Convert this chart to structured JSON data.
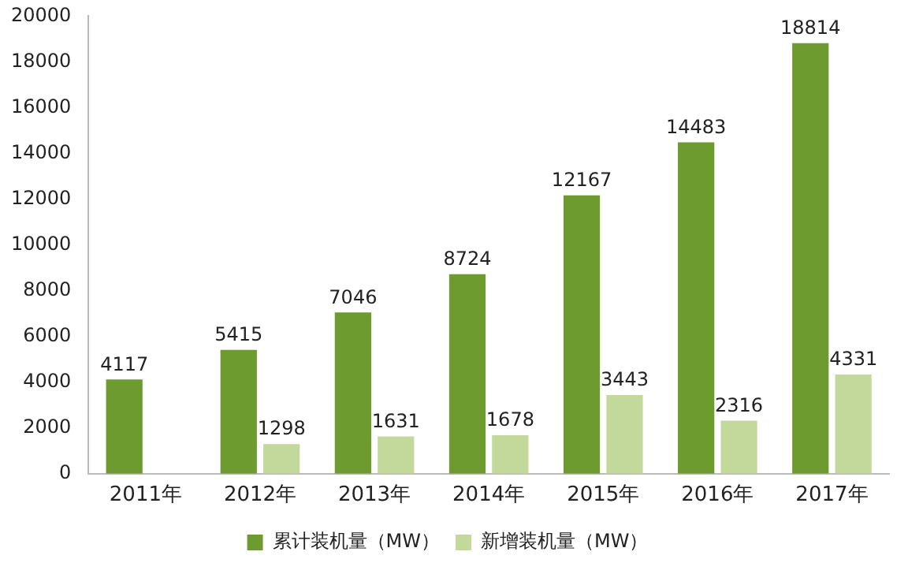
{
  "chart_data": {
    "type": "bar",
    "categories": [
      "2011年",
      "2012年",
      "2013年",
      "2014年",
      "2015年",
      "2016年",
      "2017年"
    ],
    "series": [
      {
        "name": "累计装机量（MW）",
        "color": "#6e9b2f",
        "values": [
          4117,
          5415,
          7046,
          8724,
          12167,
          14483,
          18814
        ]
      },
      {
        "name": "新增装机量（MW）",
        "color": "#c3d99b",
        "values": [
          null,
          1298,
          1631,
          1678,
          3443,
          2316,
          4331
        ]
      }
    ],
    "ylim": [
      0,
      20000
    ],
    "yticks": [
      0,
      2000,
      4000,
      6000,
      8000,
      10000,
      12000,
      14000,
      16000,
      18000,
      20000
    ],
    "grid": false,
    "legend": "bottom",
    "data_labels": true
  }
}
